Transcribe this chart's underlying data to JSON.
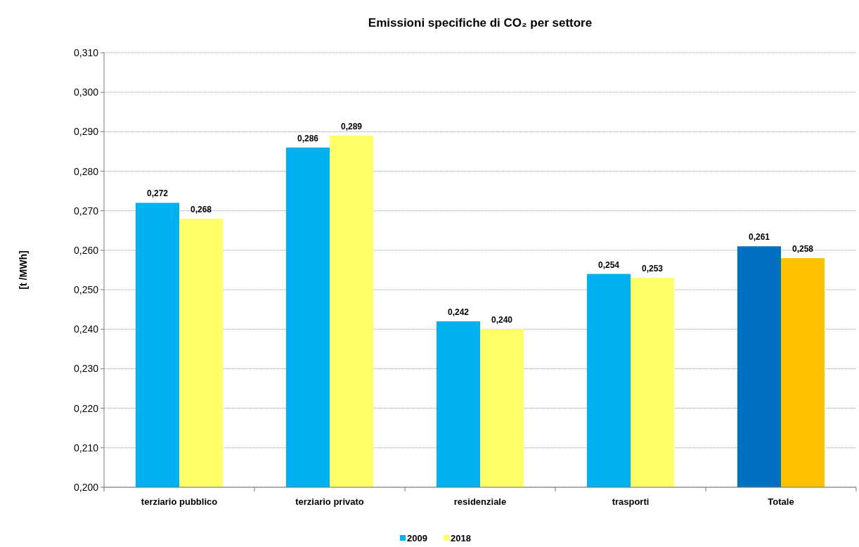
{
  "chart_data": {
    "type": "bar",
    "title": "Emissioni specifiche di CO₂ per settore",
    "ylabel": "[t /MWh]",
    "categories": [
      "terziario pubblico",
      "terziario privato",
      "residenziale",
      "trasporti",
      "Totale"
    ],
    "series": [
      {
        "name": "2009",
        "color": "#00b0f0",
        "colors": [
          "#00b0f0",
          "#00b0f0",
          "#00b0f0",
          "#00b0f0",
          "#0070c0"
        ],
        "values": [
          0.272,
          0.286,
          0.242,
          0.254,
          0.261
        ],
        "value_labels": [
          "0,272",
          "0,286",
          "0,242",
          "0,254",
          "0,261"
        ]
      },
      {
        "name": "2018",
        "color": "#ffff66",
        "colors": [
          "#ffff66",
          "#ffff66",
          "#ffff66",
          "#ffff66",
          "#ffc000"
        ],
        "values": [
          0.268,
          0.289,
          0.24,
          0.253,
          0.258
        ],
        "value_labels": [
          "0,268",
          "0,289",
          "0,240",
          "0,253",
          "0,258"
        ]
      }
    ],
    "ylim": [
      0.2,
      0.31
    ],
    "yticks": [
      {
        "value": 0.2,
        "label": "0,200"
      },
      {
        "value": 0.21,
        "label": "0,210"
      },
      {
        "value": 0.22,
        "label": "0,220"
      },
      {
        "value": 0.23,
        "label": "0,230"
      },
      {
        "value": 0.24,
        "label": "0,240"
      },
      {
        "value": 0.25,
        "label": "0,250"
      },
      {
        "value": 0.26,
        "label": "0,260"
      },
      {
        "value": 0.27,
        "label": "0,270"
      },
      {
        "value": 0.28,
        "label": "0,280"
      },
      {
        "value": 0.29,
        "label": "0,290"
      },
      {
        "value": 0.3,
        "label": "0,300"
      },
      {
        "value": 0.31,
        "label": "0,310"
      }
    ],
    "grid": "y",
    "legend": "bottom"
  }
}
